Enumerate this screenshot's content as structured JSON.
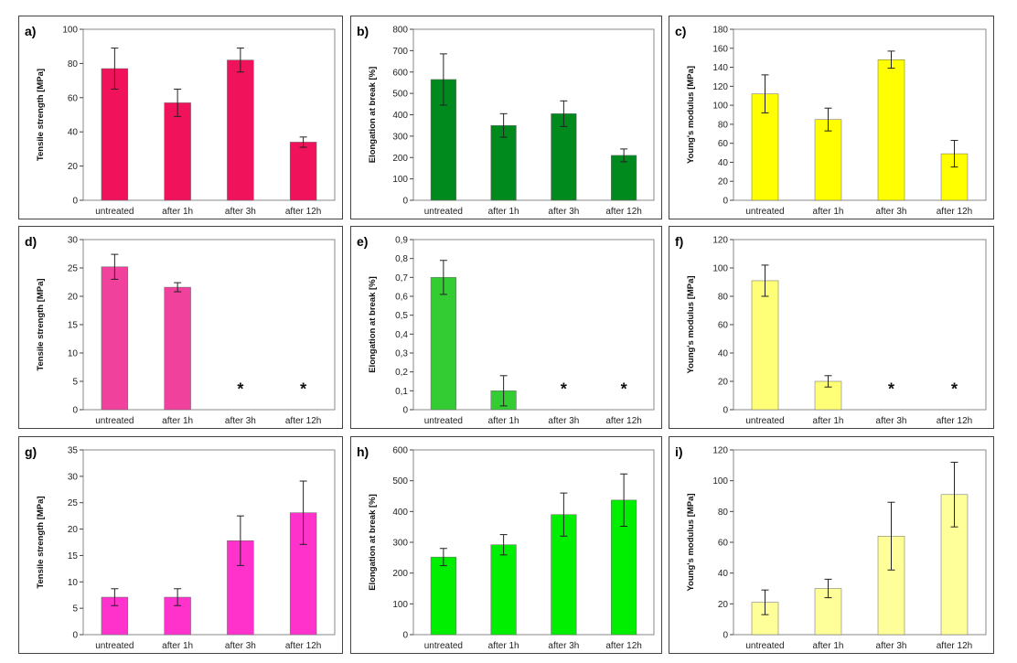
{
  "chart_data": [
    {
      "id": "a",
      "type": "bar",
      "letter": "a)",
      "ylabel": "Tensile strength [MPa]",
      "categories": [
        "untreated",
        "after 1h",
        "after 3h",
        "after 12h"
      ],
      "values": [
        77,
        57,
        82,
        34
      ],
      "errors": [
        12,
        8,
        7,
        3
      ],
      "ylim": [
        0,
        100
      ],
      "yticks": [
        0,
        20,
        40,
        60,
        80,
        100
      ],
      "color": "#f0135c",
      "missing_marker": "*"
    },
    {
      "id": "b",
      "type": "bar",
      "letter": "b)",
      "ylabel": "Elongation at break [%]",
      "categories": [
        "untreated",
        "after 1h",
        "after 3h",
        "after 12h"
      ],
      "values": [
        565,
        350,
        405,
        210
      ],
      "errors": [
        120,
        55,
        60,
        30
      ],
      "ylim": [
        0,
        800
      ],
      "yticks": [
        0,
        100,
        200,
        300,
        400,
        500,
        600,
        700,
        800
      ],
      "color": "#008a1e",
      "missing_marker": "*"
    },
    {
      "id": "c",
      "type": "bar",
      "letter": "c)",
      "ylabel": "Young's modulus [MPa]",
      "categories": [
        "untreated",
        "after 1h",
        "after 3h",
        "after 12h"
      ],
      "values": [
        112,
        85,
        148,
        49
      ],
      "errors": [
        20,
        12,
        9,
        14
      ],
      "ylim": [
        0,
        180
      ],
      "yticks": [
        0,
        20,
        40,
        60,
        80,
        100,
        120,
        140,
        160,
        180
      ],
      "color": "#ffff00",
      "missing_marker": "*"
    },
    {
      "id": "d",
      "type": "bar",
      "letter": "d)",
      "ylabel": "Tensile strength [MPa]",
      "categories": [
        "untreated",
        "after 1h",
        "after 3h",
        "after 12h"
      ],
      "values": [
        25.2,
        21.6,
        null,
        null
      ],
      "errors": [
        2.2,
        0.8,
        null,
        null
      ],
      "ylim": [
        0,
        30
      ],
      "yticks": [
        0,
        5,
        10,
        15,
        20,
        25,
        30
      ],
      "color": "#f0419c",
      "missing_marker": "*"
    },
    {
      "id": "e",
      "type": "bar",
      "letter": "e)",
      "ylabel": "Elongation at break [%]",
      "categories": [
        "untreated",
        "after 1h",
        "after 3h",
        "after 12h"
      ],
      "values": [
        0.7,
        0.1,
        null,
        null
      ],
      "errors": [
        0.09,
        0.08,
        null,
        null
      ],
      "ylim": [
        0,
        0.9
      ],
      "yticks": [
        "0",
        "0,1",
        "0,2",
        "0,3",
        "0,4",
        "0,5",
        "0,6",
        "0,7",
        "0,8",
        "0,9"
      ],
      "color": "#33cc33",
      "missing_marker": "*"
    },
    {
      "id": "f",
      "type": "bar",
      "letter": "f)",
      "ylabel": "Young's modulus [MPa]",
      "categories": [
        "untreated",
        "after 1h",
        "after 3h",
        "after 12h"
      ],
      "values": [
        91,
        20,
        null,
        null
      ],
      "errors": [
        11,
        4,
        null,
        null
      ],
      "ylim": [
        0,
        120
      ],
      "yticks": [
        0,
        20,
        40,
        60,
        80,
        100,
        120
      ],
      "color": "#ffff77",
      "missing_marker": "*"
    },
    {
      "id": "g",
      "type": "bar",
      "letter": "g)",
      "ylabel": "Tensile strength [MPa]",
      "categories": [
        "untreated",
        "after 1h",
        "after 3h",
        "after 12h"
      ],
      "values": [
        7.1,
        7.1,
        17.8,
        23.1
      ],
      "errors": [
        1.6,
        1.6,
        4.7,
        6
      ],
      "ylim": [
        0,
        35
      ],
      "yticks": [
        0,
        5,
        10,
        15,
        20,
        25,
        30,
        35
      ],
      "color": "#ff33cc",
      "missing_marker": "*"
    },
    {
      "id": "h",
      "type": "bar",
      "letter": "h)",
      "ylabel": "Elongation at break [%]",
      "categories": [
        "untreated",
        "after 1h",
        "after 3h",
        "after 12h"
      ],
      "values": [
        252,
        292,
        390,
        437
      ],
      "errors": [
        28,
        33,
        70,
        85
      ],
      "ylim": [
        0,
        600
      ],
      "yticks": [
        0,
        100,
        200,
        300,
        400,
        500,
        600
      ],
      "color": "#00ee00",
      "missing_marker": "*"
    },
    {
      "id": "i",
      "type": "bar",
      "letter": "i)",
      "ylabel": "Young's modulus [MPa]",
      "categories": [
        "untreated",
        "after 1h",
        "after 3h",
        "after 12h"
      ],
      "values": [
        21,
        30,
        64,
        91
      ],
      "errors": [
        8,
        6,
        22,
        21
      ],
      "ylim": [
        0,
        120
      ],
      "yticks": [
        0,
        20,
        40,
        60,
        80,
        100,
        120
      ],
      "color": "#ffff99",
      "missing_marker": "*"
    }
  ]
}
